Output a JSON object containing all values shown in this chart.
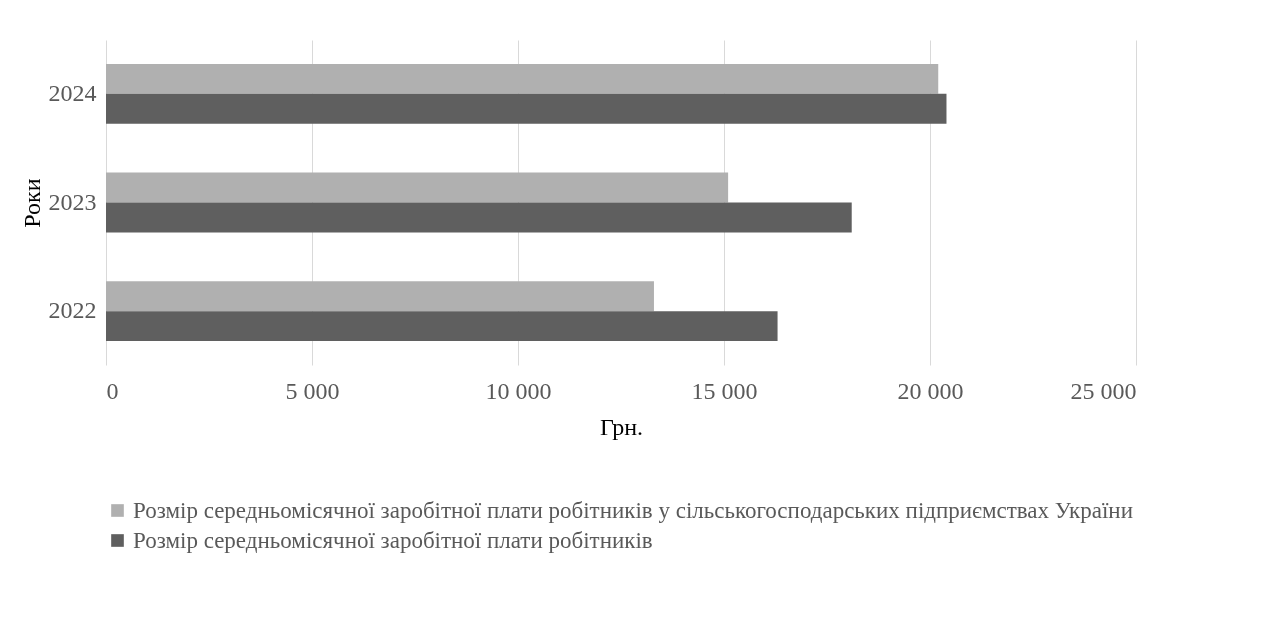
{
  "chart_data": {
    "type": "bar",
    "orientation": "horizontal",
    "xlabel": "Грн.",
    "ylabel": "Роки",
    "categories": [
      "2024",
      "2023",
      "2022"
    ],
    "series": [
      {
        "name": "Розмір середньомісячної заробітної плати робітників у сільськогосподарських підприємствах України",
        "color": "#b0b0b0",
        "values": [
          20200,
          15100,
          13300
        ]
      },
      {
        "name": "Розмір середньомісячної заробітної плати робітників",
        "color": "#5f5f5f",
        "values": [
          20400,
          18100,
          16300
        ]
      }
    ],
    "xlim": [
      0,
      25000
    ],
    "xticks": [
      0,
      {
        "value": 5000,
        "label": "5 000"
      },
      {
        "value": 10000,
        "label": "10 000"
      },
      {
        "value": 15000,
        "label": "15 000"
      },
      {
        "value": 20000,
        "label": "20 000"
      },
      {
        "value": 25000,
        "label": "25 000"
      }
    ],
    "grid": "x",
    "legend": "bottom"
  }
}
